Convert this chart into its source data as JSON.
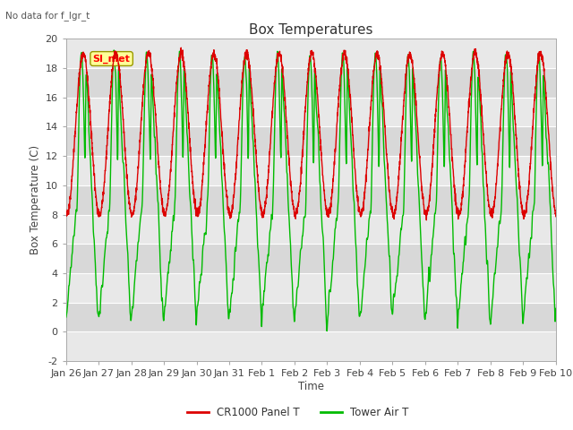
{
  "title": "Box Temperatures",
  "subtitle": "No data for f_lgr_t",
  "ylabel": "Box Temperature (C)",
  "xlabel": "Time",
  "ylim": [
    -2,
    20
  ],
  "yticks": [
    -2,
    0,
    2,
    4,
    6,
    8,
    10,
    12,
    14,
    16,
    18,
    20
  ],
  "xtick_labels": [
    "Jan 26",
    "Jan 27",
    "Jan 28",
    "Jan 29",
    "Jan 30",
    "Jan 31",
    "Feb 1",
    "Feb 2",
    "Feb 3",
    "Feb 4",
    "Feb 5",
    "Feb 6",
    "Feb 7",
    "Feb 8",
    "Feb 9",
    "Feb 10"
  ],
  "annotation_box": "SI_met",
  "legend": [
    {
      "label": "CR1000 Panel T",
      "color": "#dd0000"
    },
    {
      "label": "Tower Air T",
      "color": "#00bb00"
    }
  ],
  "bg_color": "#ffffff",
  "band_colors": [
    "#e8e8e8",
    "#d8d8d8"
  ],
  "grid_color": "#ffffff",
  "line_width": 1.0,
  "figsize": [
    6.4,
    4.8
  ],
  "dpi": 100
}
